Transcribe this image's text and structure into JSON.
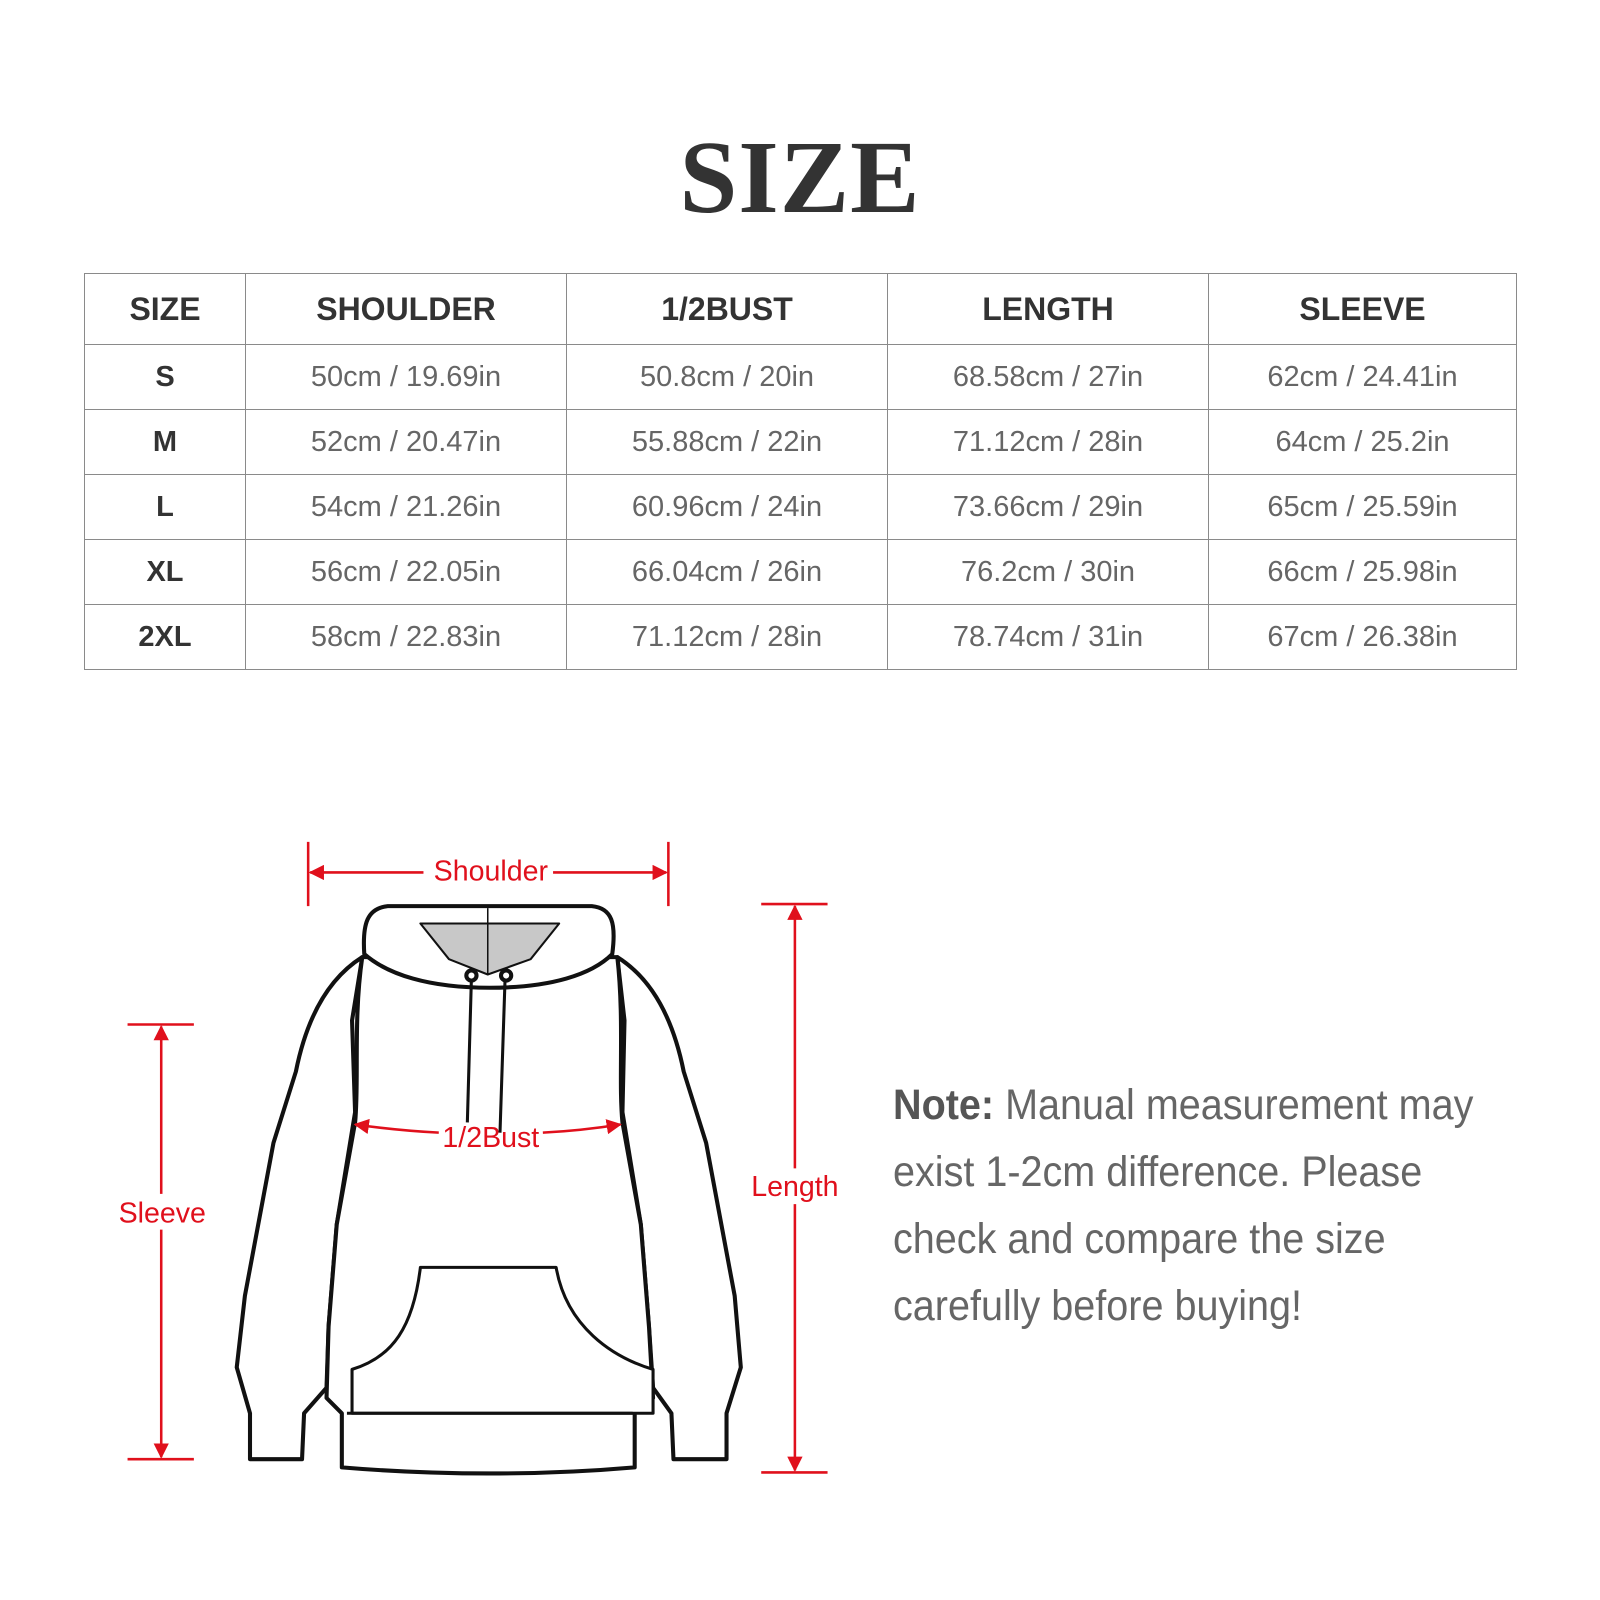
{
  "title": "SIZE",
  "table": {
    "headers": [
      "SIZE",
      "SHOULDER",
      "1/2BUST",
      "LENGTH",
      "SLEEVE"
    ],
    "rows": [
      [
        "S",
        "50cm / 19.69in",
        "50.8cm / 20in",
        "68.58cm / 27in",
        "62cm / 24.41in"
      ],
      [
        "M",
        "52cm / 20.47in",
        "55.88cm / 22in",
        "71.12cm / 28in",
        "64cm / 25.2in"
      ],
      [
        "L",
        "54cm / 21.26in",
        "60.96cm / 24in",
        "73.66cm / 29in",
        "65cm / 25.59in"
      ],
      [
        "XL",
        "56cm / 22.05in",
        "66.04cm / 26in",
        "76.2cm / 30in",
        "66cm / 25.98in"
      ],
      [
        "2XL",
        "58cm / 22.83in",
        "71.12cm / 28in",
        "78.74cm / 31in",
        "67cm / 26.38in"
      ]
    ]
  },
  "diagram": {
    "shoulder": "Shoulder",
    "bust": "1/2Bust",
    "sleeve": "Sleeve",
    "length": "Length",
    "accent_color": "#e0101c"
  },
  "note": {
    "label": "Note:",
    "text": " Manual measurement may exist 1-2cm difference. Please check and compare the size carefully before buying!"
  }
}
